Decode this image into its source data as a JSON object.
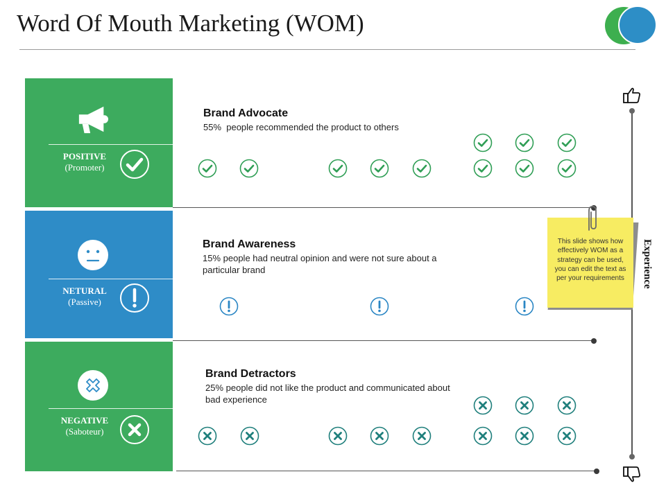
{
  "title": "Word Of Mouth Marketing (WOM)",
  "colors": {
    "green": "#3dab5e",
    "blue": "#2e8cc7",
    "logo_green": "#3daf4f",
    "logo_blue": "#2d8ec6",
    "mark_green": "#2f9e55",
    "mark_teal": "#1f7f7c",
    "mark_blue": "#2a86c4",
    "note_yellow": "#f7ec62"
  },
  "categories": [
    {
      "title": "POSITIVE",
      "subtitle": "(Promoter)",
      "icon": "megaphone-icon",
      "badge_icon": "checkmark-icon"
    },
    {
      "title": "NETURAL",
      "subtitle": "(Passive)",
      "icon": "neutral-face-icon",
      "badge_icon": "exclamation-icon"
    },
    {
      "title": "NEGATIVE",
      "subtitle": "(Saboteur)",
      "icon": "cross-badge-icon",
      "badge_icon": "cross-icon"
    }
  ],
  "sections": [
    {
      "heading": "Brand Advocate",
      "text": "55%  people recommended the product to others",
      "mark_icon": "check-circle-icon"
    },
    {
      "heading": "Brand Awareness",
      "text": "15% people had neutral opinion and were not sure about a particular brand",
      "mark_icon": "exclamation-circle-icon"
    },
    {
      "heading": "Brand Detractors",
      "text": "25% people did not like the product and communicated about bad experience",
      "mark_icon": "cross-circle-icon"
    }
  ],
  "note": {
    "text": "This slide shows how effectively WOM as a strategy can be used, you can edit the text as per your requirements"
  },
  "axis": {
    "label": "Experience",
    "top_icon": "thumbs-up-icon",
    "bottom_icon": "thumbs-down-icon"
  }
}
